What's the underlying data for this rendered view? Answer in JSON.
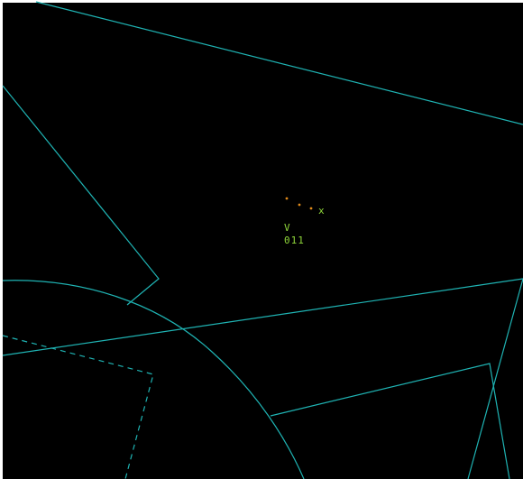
{
  "colors": {
    "background": "#000000",
    "white_frame": "#ffffff",
    "airspace_boundary": "#1fb3b3",
    "history_trail": "#e08a1a",
    "target_symbol": "#8fd63a",
    "data_tag": "#8fd63a"
  },
  "target": {
    "symbol": "x",
    "history_dots": 3,
    "data_block": {
      "line1": "V",
      "line2": "011"
    }
  },
  "map_features": [
    "boundary-line-top",
    "boundary-chevron-left",
    "boundary-line-middle",
    "boundary-arc",
    "boundary-polygon-lower-right",
    "boundary-dashed-lower-left"
  ]
}
